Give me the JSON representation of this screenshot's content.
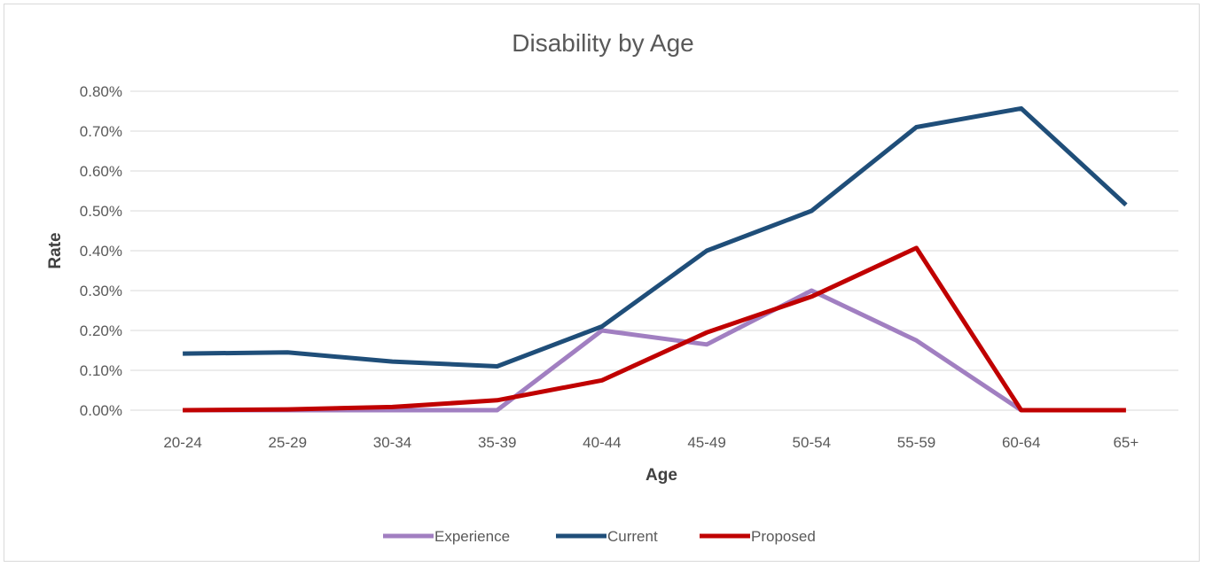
{
  "chart_data": {
    "type": "line",
    "title": "Disability by Age",
    "xlabel": "Age",
    "ylabel": "Rate",
    "categories": [
      "20-24",
      "25-29",
      "30-34",
      "35-39",
      "40-44",
      "45-49",
      "50-54",
      "55-59",
      "60-64",
      "65+"
    ],
    "y_ticks": [
      "0.00%",
      "0.10%",
      "0.20%",
      "0.30%",
      "0.40%",
      "0.50%",
      "0.60%",
      "0.70%",
      "0.80%"
    ],
    "ylim": [
      0,
      0.8
    ],
    "grid": true,
    "legend_position": "bottom",
    "series": [
      {
        "name": "Experience",
        "color": "#a17fc1",
        "values": [
          0,
          0,
          0,
          0,
          0.2,
          0.165,
          0.3,
          0.175,
          0,
          null
        ]
      },
      {
        "name": "Current",
        "color": "#1f4e79",
        "values": [
          0.142,
          0.145,
          0.122,
          0.11,
          0.21,
          0.4,
          0.5,
          0.71,
          0.757,
          0.515
        ]
      },
      {
        "name": "Proposed",
        "color": "#c00000",
        "values": [
          0,
          0.002,
          0.008,
          0.025,
          0.075,
          0.195,
          0.285,
          0.407,
          0,
          0
        ]
      }
    ],
    "gridline_color": "#d9d9d9"
  }
}
